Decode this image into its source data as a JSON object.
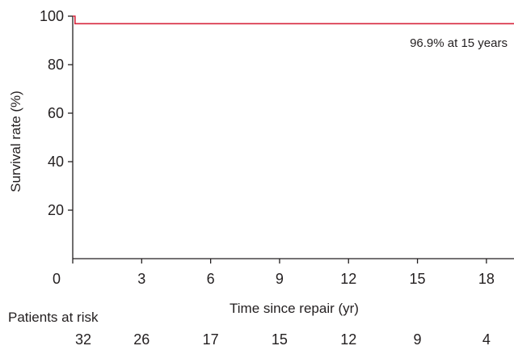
{
  "chart_data": {
    "type": "line",
    "title": "",
    "xlabel": "Time since repair (yr)",
    "ylabel": "Survival rate (%)",
    "xlim": [
      0,
      19.2
    ],
    "ylim": [
      0,
      100
    ],
    "x_ticks": [
      0,
      3,
      6,
      9,
      12,
      15,
      18
    ],
    "y_ticks": [
      20,
      40,
      60,
      80,
      100
    ],
    "grid": false,
    "series": [
      {
        "color": "#d7263d",
        "step": true,
        "x": [
          0,
          0.1,
          0.1,
          19.2
        ],
        "y": [
          100,
          100,
          96.9,
          96.9
        ]
      }
    ],
    "annotation": {
      "text": "96.9% at 15 years",
      "x": 15,
      "y": 96.9
    },
    "risk_table": {
      "title": "Patients at risk",
      "times": [
        0,
        3,
        6,
        9,
        12,
        15,
        18
      ],
      "values": [
        32,
        26,
        17,
        15,
        12,
        9,
        4
      ]
    }
  }
}
